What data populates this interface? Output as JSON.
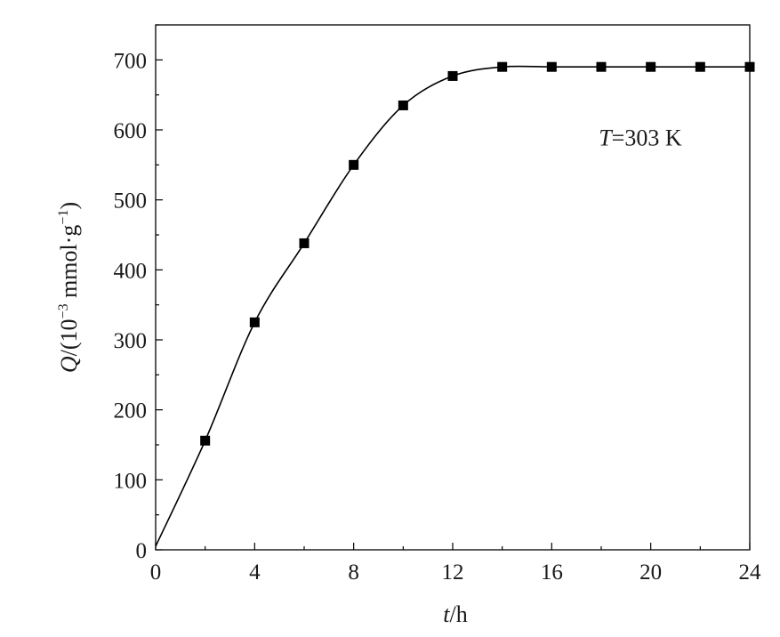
{
  "chart_data": {
    "type": "line",
    "x": [
      0,
      2,
      4,
      6,
      8,
      10,
      12,
      14,
      16,
      18,
      20,
      22,
      24
    ],
    "series": [
      {
        "values": [
          5,
          156,
          325,
          438,
          550,
          635,
          677,
          690,
          690,
          690,
          690,
          690,
          690
        ],
        "color": "#000000",
        "marker": "square"
      }
    ],
    "xlabel": {
      "italic": "t",
      "rest": "/h"
    },
    "ylabel": {
      "italic": "Q",
      "prefix": "/(10",
      "exp1": "−3",
      "middle": " mmol·g",
      "exp2": "−1",
      "suffix": ")"
    },
    "xlim": [
      0,
      24
    ],
    "ylim": [
      0,
      750
    ],
    "xticks": [
      "0",
      "4",
      "8",
      "12",
      "16",
      "20",
      "24"
    ],
    "xtick_values": [
      0,
      4,
      8,
      12,
      16,
      20,
      24
    ],
    "yticks": [
      "0",
      "100",
      "200",
      "300",
      "400",
      "500",
      "600",
      "700"
    ],
    "ytick_values": [
      0,
      100,
      200,
      300,
      400,
      500,
      600,
      700
    ],
    "annotation": {
      "italic": "T",
      "rest": "=303 K",
      "x": 17.9,
      "y": 578
    },
    "grid": false,
    "legend": "none"
  }
}
